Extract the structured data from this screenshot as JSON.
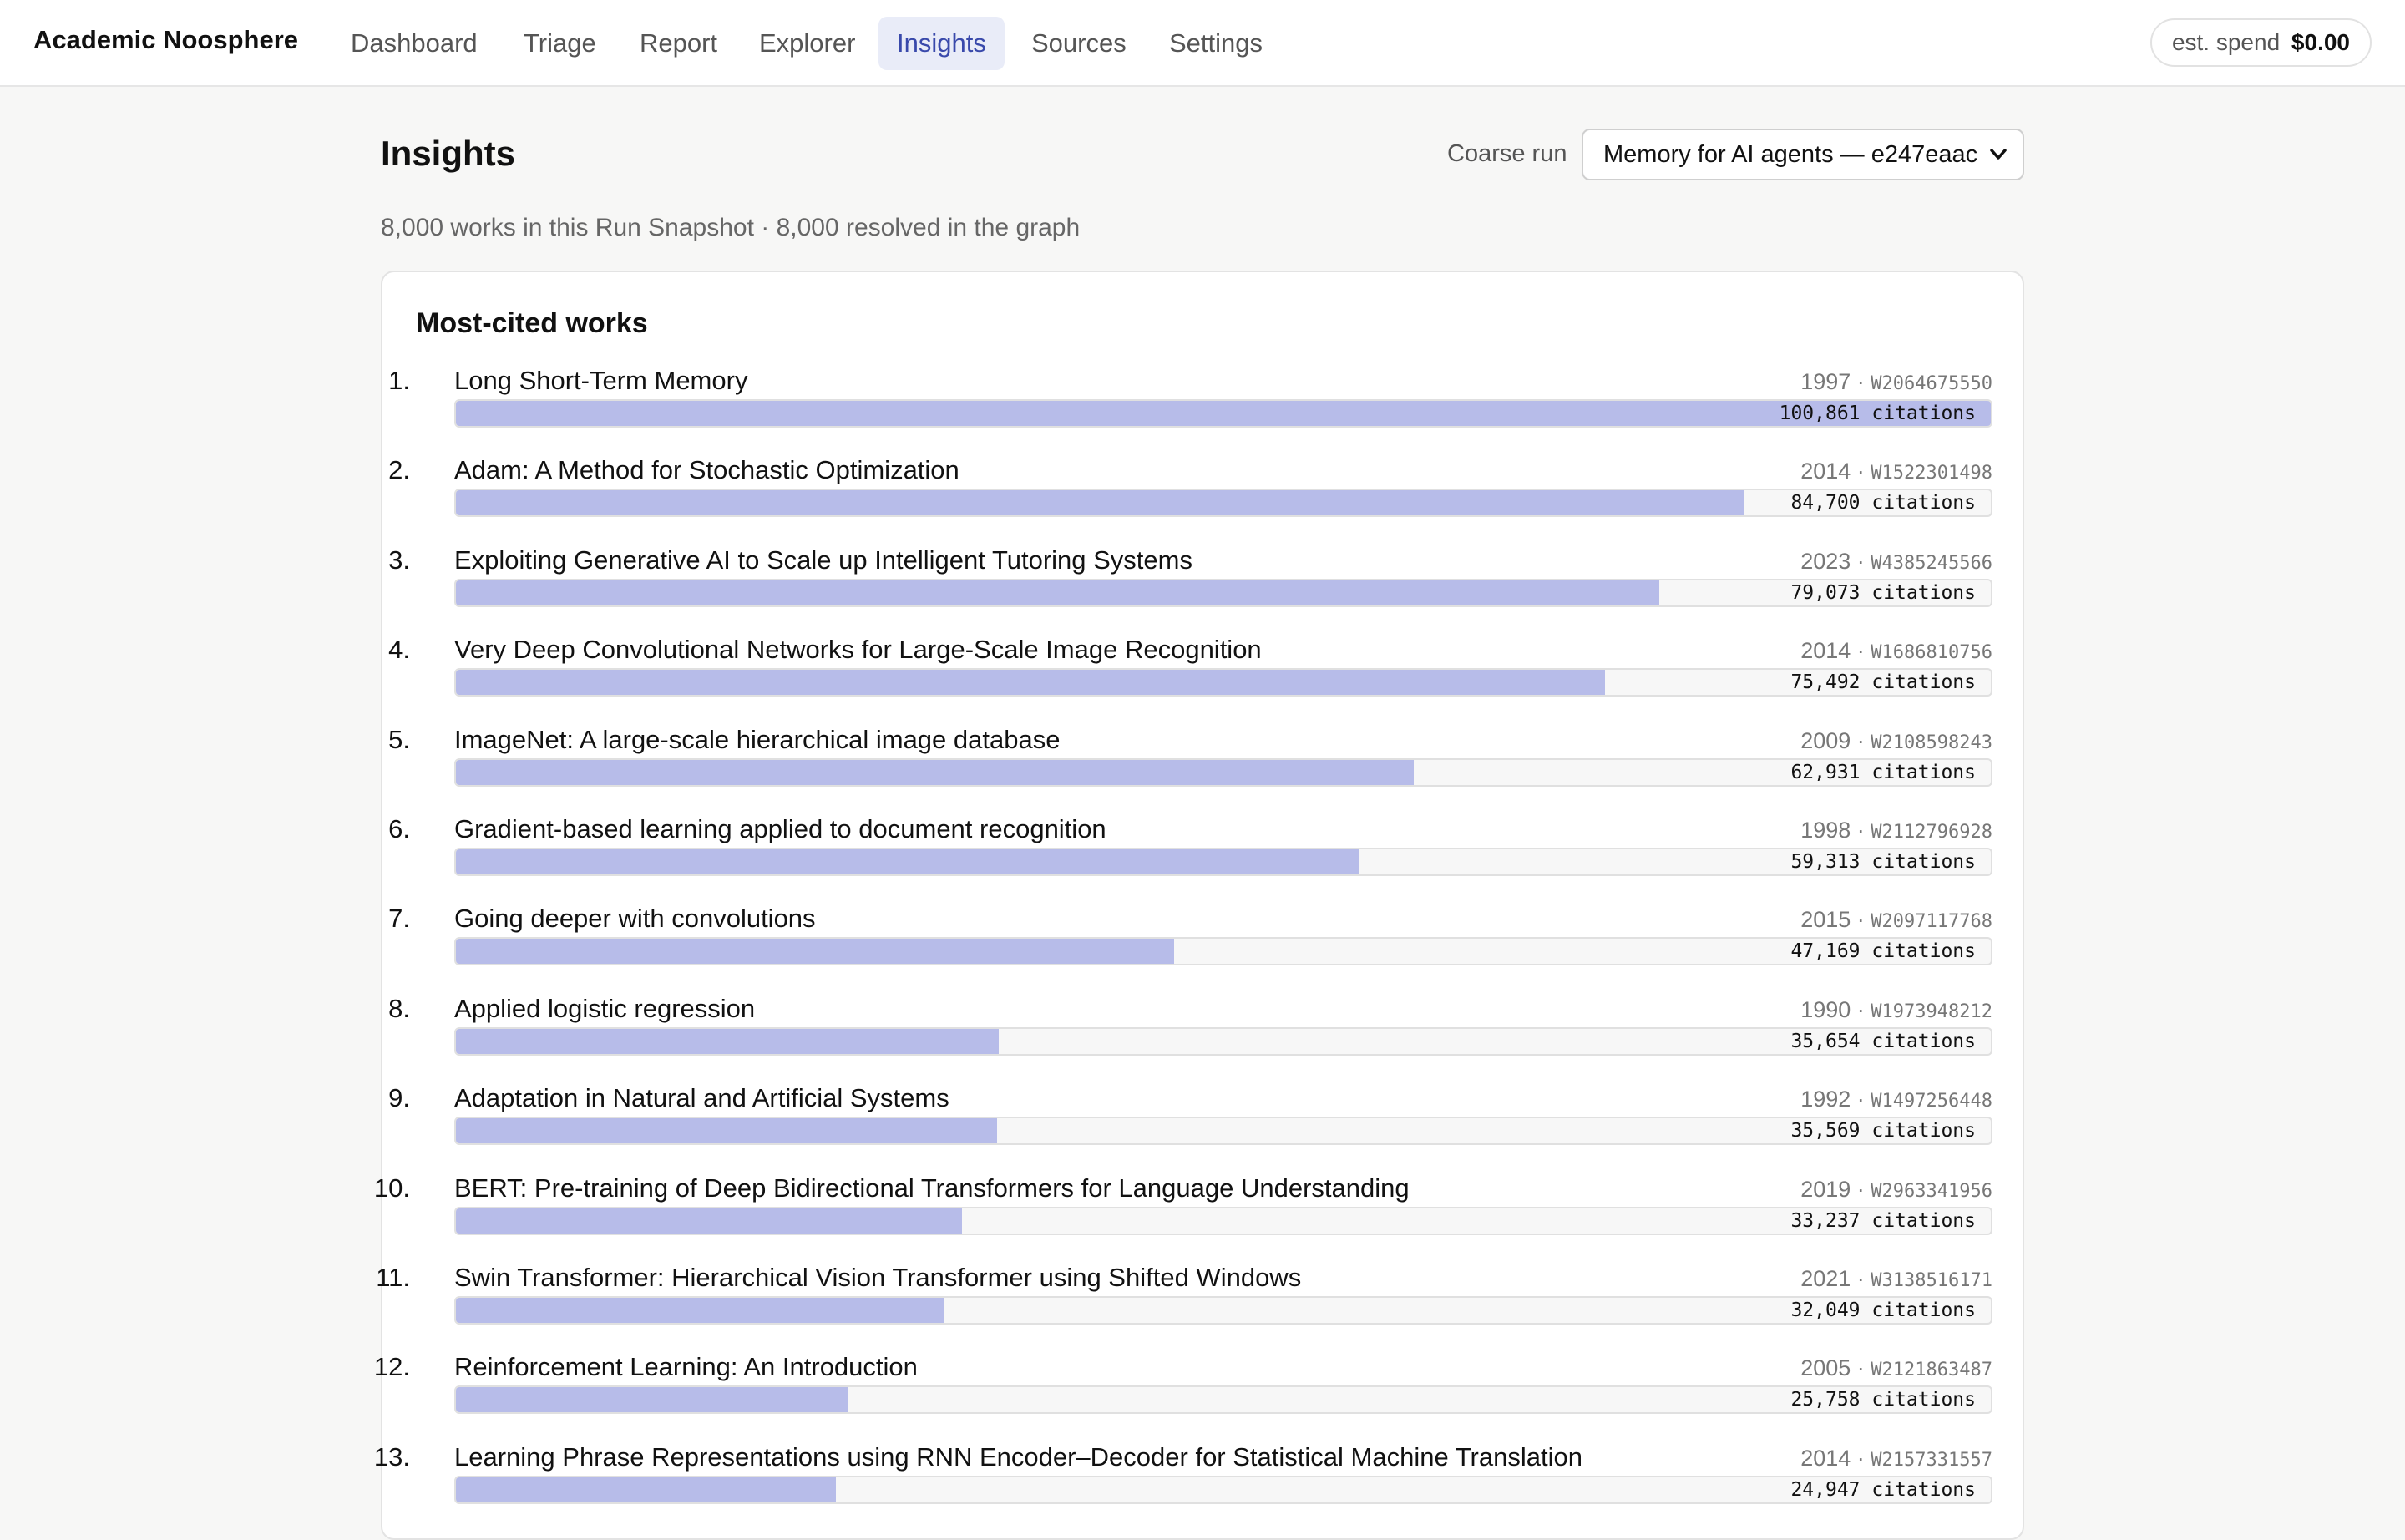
{
  "app": {
    "name": "Academic Noosphere"
  },
  "nav": {
    "items": [
      {
        "label": "Dashboard",
        "active": false
      },
      {
        "label": "Triage",
        "active": false
      },
      {
        "label": "Report",
        "active": false
      },
      {
        "label": "Explorer",
        "active": false
      },
      {
        "label": "Insights",
        "active": true
      },
      {
        "label": "Sources",
        "active": false
      },
      {
        "label": "Settings",
        "active": false
      }
    ]
  },
  "spend": {
    "label": "est. spend",
    "value": "$0.00"
  },
  "page": {
    "title": "Insights",
    "run_label": "Coarse run",
    "run_selected": "Memory for AI agents — e247eaac",
    "summary": "8,000 works in this Run Snapshot · 8,000 resolved in the graph"
  },
  "most_cited": {
    "title": "Most-cited works",
    "max_citations": 100861,
    "works": [
      {
        "rank": "1.",
        "title": "Long Short-Term Memory",
        "year": "1997",
        "id": "W2064675550",
        "citations": 100861,
        "citations_label": "100,861 citations"
      },
      {
        "rank": "2.",
        "title": "Adam: A Method for Stochastic Optimization",
        "year": "2014",
        "id": "W1522301498",
        "citations": 84700,
        "citations_label": "84,700 citations"
      },
      {
        "rank": "3.",
        "title": "Exploiting Generative AI to Scale up Intelligent Tutoring Systems",
        "year": "2023",
        "id": "W4385245566",
        "citations": 79073,
        "citations_label": "79,073 citations"
      },
      {
        "rank": "4.",
        "title": "Very Deep Convolutional Networks for Large-Scale Image Recognition",
        "year": "2014",
        "id": "W1686810756",
        "citations": 75492,
        "citations_label": "75,492 citations"
      },
      {
        "rank": "5.",
        "title": "ImageNet: A large-scale hierarchical image database",
        "year": "2009",
        "id": "W2108598243",
        "citations": 62931,
        "citations_label": "62,931 citations"
      },
      {
        "rank": "6.",
        "title": "Gradient-based learning applied to document recognition",
        "year": "1998",
        "id": "W2112796928",
        "citations": 59313,
        "citations_label": "59,313 citations"
      },
      {
        "rank": "7.",
        "title": "Going deeper with convolutions",
        "year": "2015",
        "id": "W2097117768",
        "citations": 47169,
        "citations_label": "47,169 citations"
      },
      {
        "rank": "8.",
        "title": "Applied logistic regression",
        "year": "1990",
        "id": "W1973948212",
        "citations": 35654,
        "citations_label": "35,654 citations"
      },
      {
        "rank": "9.",
        "title": "Adaptation in Natural and Artificial Systems",
        "year": "1992",
        "id": "W1497256448",
        "citations": 35569,
        "citations_label": "35,569 citations"
      },
      {
        "rank": "10.",
        "title": "BERT: Pre-training of Deep Bidirectional Transformers for Language Understanding",
        "year": "2019",
        "id": "W2963341956",
        "citations": 33237,
        "citations_label": "33,237 citations"
      },
      {
        "rank": "11.",
        "title": "Swin Transformer: Hierarchical Vision Transformer using Shifted Windows",
        "year": "2021",
        "id": "W3138516171",
        "citations": 32049,
        "citations_label": "32,049 citations"
      },
      {
        "rank": "12.",
        "title": "Reinforcement Learning: An Introduction",
        "year": "2005",
        "id": "W2121863487",
        "citations": 25758,
        "citations_label": "25,758 citations"
      },
      {
        "rank": "13.",
        "title": "Learning Phrase Representations using RNN Encoder–Decoder for Statistical Machine Translation",
        "year": "2014",
        "id": "W2157331557",
        "citations": 24947,
        "citations_label": "24,947 citations"
      }
    ]
  },
  "colors": {
    "accent": "#3949ab",
    "bar_fill": "#b7bce9",
    "active_nav_bg": "#e9ecf8"
  }
}
